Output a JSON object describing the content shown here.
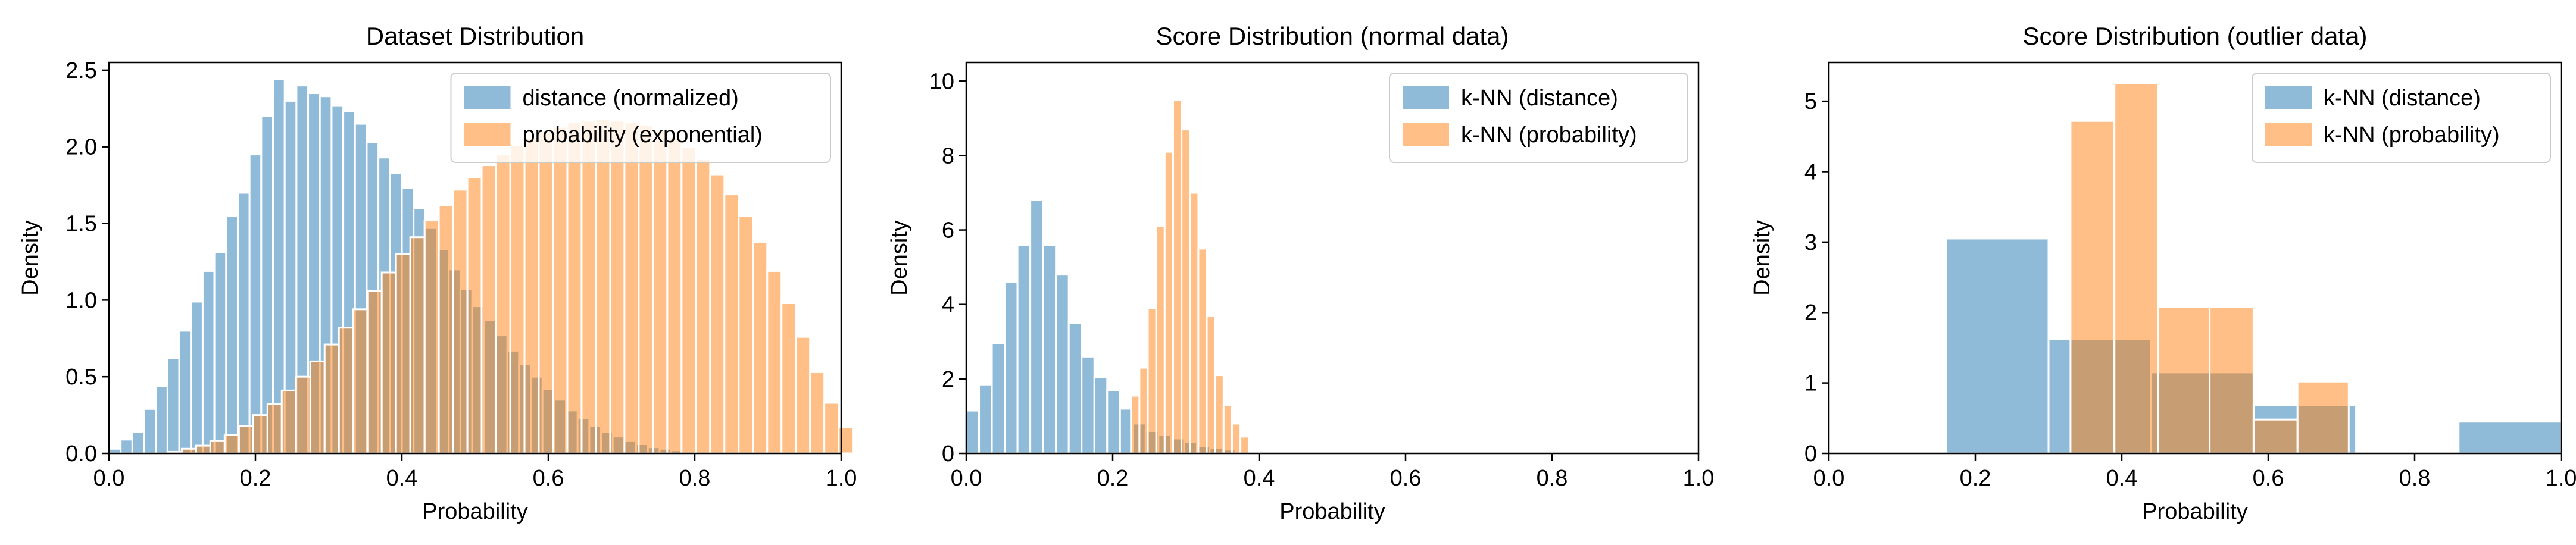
{
  "colors": {
    "blue": "#1f77b4",
    "orange": "#ff7f0e",
    "bar_opacity": 0.5,
    "bar_edge": "#ffffff",
    "axis": "#000000"
  },
  "chart_data": [
    {
      "type": "histogram",
      "title": "Dataset Distribution",
      "xlabel": "Probability",
      "ylabel": "Density",
      "xlim": [
        0.0,
        1.0
      ],
      "ylim": [
        0,
        2.55
      ],
      "xticks": [
        "0.0",
        "0.2",
        "0.4",
        "0.6",
        "0.8",
        "1.0"
      ],
      "yticks": [
        "0.0",
        "0.5",
        "1.0",
        "1.5",
        "2.0",
        "2.5"
      ],
      "legend_position": "top-right",
      "series": [
        {
          "name": "distance (normalized)",
          "color": "#1f77b4",
          "bin_start": 0.0,
          "bin_width": 0.016,
          "values": [
            0.03,
            0.09,
            0.14,
            0.29,
            0.44,
            0.62,
            0.8,
            0.99,
            1.19,
            1.31,
            1.55,
            1.7,
            1.95,
            2.2,
            2.44,
            2.3,
            2.4,
            2.35,
            2.33,
            2.27,
            2.23,
            2.15,
            2.03,
            1.93,
            1.83,
            1.73,
            1.6,
            1.47,
            1.33,
            1.2,
            1.07,
            0.96,
            0.87,
            0.77,
            0.67,
            0.58,
            0.5,
            0.42,
            0.35,
            0.28,
            0.23,
            0.18,
            0.14,
            0.11,
            0.08,
            0.06,
            0.04,
            0.03,
            0.02,
            0.01,
            0.01
          ]
        },
        {
          "name": "probability (exponential)",
          "color": "#ff7f0e",
          "bin_start": 0.08,
          "bin_width": 0.0195,
          "values": [
            0.01,
            0.03,
            0.05,
            0.08,
            0.12,
            0.18,
            0.25,
            0.32,
            0.41,
            0.5,
            0.6,
            0.71,
            0.82,
            0.94,
            1.06,
            1.18,
            1.3,
            1.41,
            1.52,
            1.62,
            1.72,
            1.8,
            1.88,
            1.95,
            2.01,
            2.06,
            2.1,
            2.13,
            2.16,
            2.17,
            2.18,
            2.17,
            2.16,
            2.14,
            2.11,
            2.06,
            2.0,
            1.92,
            1.82,
            1.69,
            1.55,
            1.38,
            1.19,
            0.98,
            0.76,
            0.53,
            0.33,
            0.17
          ]
        }
      ]
    },
    {
      "type": "histogram",
      "title": "Score Distribution (normal data)",
      "xlabel": "Probability",
      "ylabel": "Density",
      "xlim": [
        0.0,
        1.0
      ],
      "ylim": [
        0,
        10.5
      ],
      "xticks": [
        "0.0",
        "0.2",
        "0.4",
        "0.6",
        "0.8",
        "1.0"
      ],
      "yticks": [
        "0",
        "2",
        "4",
        "6",
        "8",
        "10"
      ],
      "legend_position": "top-right",
      "series": [
        {
          "name": "k-NN (distance)",
          "color": "#1f77b4",
          "bin_start": 0.0,
          "bin_width": 0.0175,
          "values": [
            1.15,
            1.85,
            2.95,
            4.6,
            5.6,
            6.8,
            5.6,
            4.8,
            3.5,
            2.6,
            2.05,
            1.7,
            1.2,
            0.8,
            0.6,
            0.5,
            0.4,
            0.3,
            0.2,
            0.15,
            0.1,
            0.05
          ]
        },
        {
          "name": "k-NN (probability)",
          "color": "#ff7f0e",
          "bin_start": 0.225,
          "bin_width": 0.0115,
          "values": [
            1.55,
            2.3,
            3.9,
            6.1,
            8.1,
            9.5,
            8.7,
            7.0,
            5.5,
            3.7,
            2.1,
            1.3,
            0.8,
            0.45
          ]
        }
      ]
    },
    {
      "type": "histogram",
      "title": "Score Distribution (outlier data)",
      "xlabel": "Probability",
      "ylabel": "Density",
      "xlim": [
        0.0,
        1.0
      ],
      "ylim": [
        0,
        5.55
      ],
      "xticks": [
        "0.0",
        "0.2",
        "0.4",
        "0.6",
        "0.8",
        "1.0"
      ],
      "yticks": [
        "0",
        "1",
        "2",
        "3",
        "4",
        "5"
      ],
      "legend_position": "top-right",
      "series": [
        {
          "name": "k-NN (distance)",
          "color": "#1f77b4",
          "bins": [
            [
              0.16,
              0.3
            ],
            [
              0.3,
              0.44
            ],
            [
              0.44,
              0.58
            ],
            [
              0.58,
              0.72
            ],
            [
              0.72,
              0.86
            ],
            [
              0.86,
              1.0
            ]
          ],
          "values": [
            3.05,
            1.62,
            1.15,
            0.68,
            0.0,
            0.45
          ]
        },
        {
          "name": "k-NN (probability)",
          "color": "#ff7f0e",
          "bins": [
            [
              0.33,
              0.39
            ],
            [
              0.39,
              0.45
            ],
            [
              0.45,
              0.52
            ],
            [
              0.52,
              0.58
            ],
            [
              0.58,
              0.64
            ],
            [
              0.64,
              0.71
            ]
          ],
          "values": [
            4.72,
            5.25,
            2.08,
            2.08,
            0.48,
            1.02
          ]
        }
      ]
    }
  ]
}
